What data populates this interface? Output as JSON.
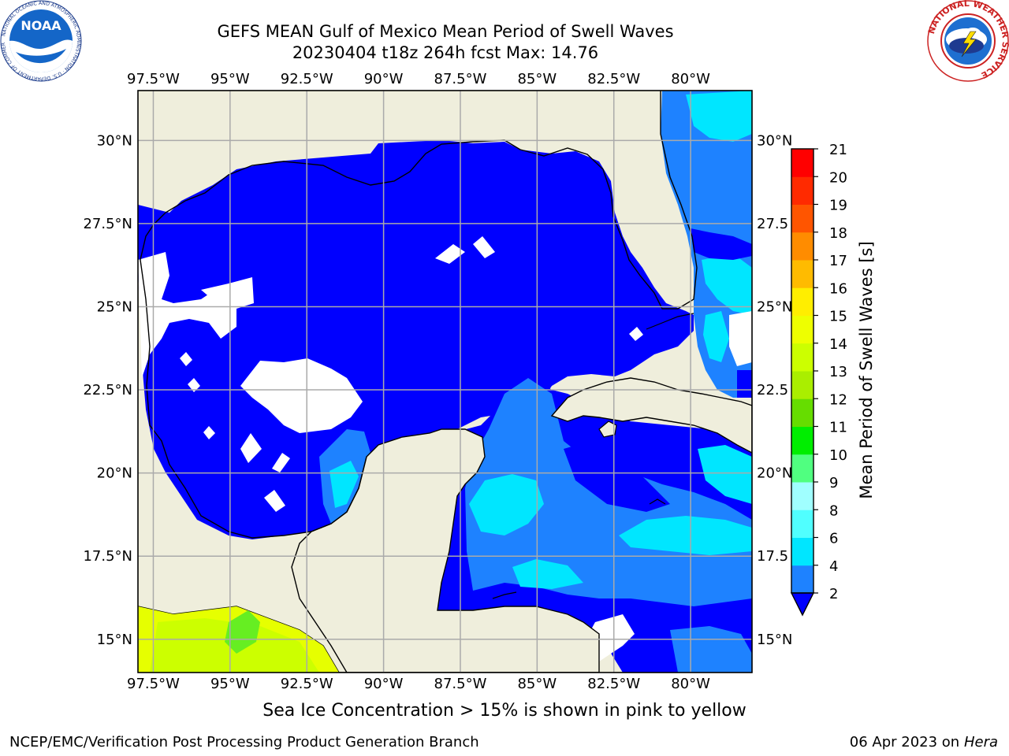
{
  "title": {
    "line1": "GEFS MEAN Gulf of Mexico Mean Period of Swell Waves",
    "line2": "20230404 t18z 264h fcst   Max: 14.76"
  },
  "map": {
    "lon_ticks": [
      "97.5°W",
      "95°W",
      "92.5°W",
      "90°W",
      "87.5°W",
      "85°W",
      "82.5°W",
      "80°W"
    ],
    "lat_ticks_left": [
      "30°N",
      "27.5°N",
      "25°N",
      "22.5°N",
      "20°N",
      "17.5°N",
      "15°N"
    ],
    "lat_ticks_right": [
      "30°N",
      "27.5",
      "25°N",
      "22.5",
      "20°N",
      "17.5",
      "15°N"
    ],
    "lon_range": [
      -98,
      -78
    ],
    "lat_range": [
      14,
      31.5
    ],
    "colors": {
      "land": "#efeedc",
      "ocean_low": "#0000ff",
      "ocean_2_4": "#1e82ff",
      "ocean_4_6": "#00e6ff",
      "ocean_12_13": "#ccff00",
      "ocean_13_14": "#e6ff00",
      "ocean_11_12": "#66ee22",
      "gridline": "#aaaaaa"
    }
  },
  "colorbar": {
    "label": "Mean Period of Swell Waves [s]",
    "ticks": [
      "2",
      "4",
      "6",
      "8",
      "9",
      "10",
      "11",
      "12",
      "13",
      "14",
      "15",
      "16",
      "17",
      "18",
      "19",
      "20",
      "21"
    ],
    "colors": [
      "#0000ff",
      "#1e82ff",
      "#00e6ff",
      "#50ffff",
      "#a0ffff",
      "#50ff80",
      "#00ee00",
      "#66dd00",
      "#aaee00",
      "#ccff00",
      "#eeff00",
      "#ffee00",
      "#ffbb00",
      "#ff8c00",
      "#ff5500",
      "#ff2a00",
      "#ff0000"
    ]
  },
  "note": "Sea Ice Concentration > 15% is shown in pink to yellow",
  "footer": {
    "left": "NCEP/EMC/Verification Post Processing Product Generation Branch",
    "date": "06 Apr 2023 on ",
    "machine": "Hera"
  },
  "logos": {
    "noaa_text": "NOAA",
    "noaa_ring": "NATIONAL OCEANIC AND ATMOSPHERIC ADMINISTRATION · U.S. DEPARTMENT OF COMMERCE",
    "nws_ring": "NATIONAL WEATHER SERVICE"
  }
}
